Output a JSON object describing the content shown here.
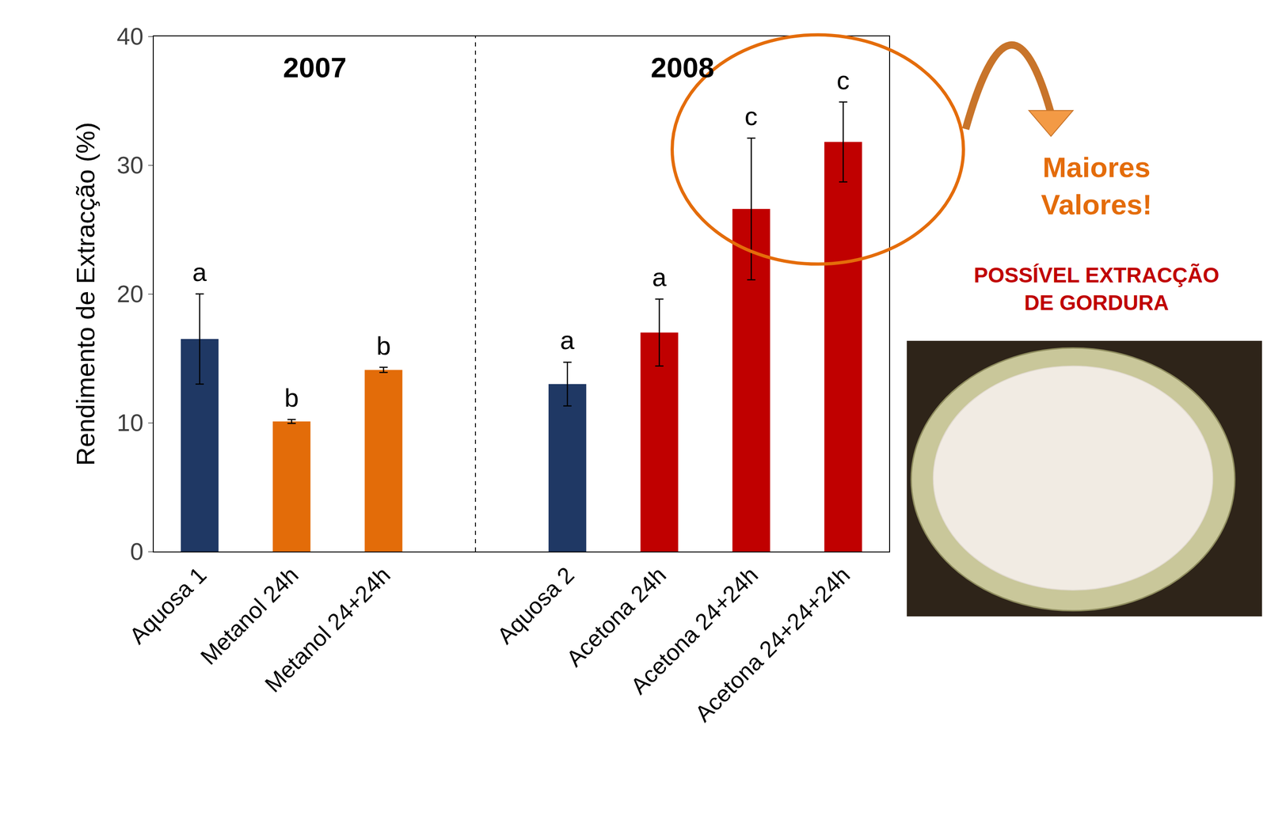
{
  "chart_data": {
    "type": "bar",
    "categories": [
      "Aquosa 1",
      "Metanol 24h",
      "Metanol 24+24h",
      null,
      "Aquosa 2",
      "Acetona 24h",
      "Acetona 24+24h",
      "Acetona 24+24+24h"
    ],
    "values": [
      16.5,
      10.1,
      14.1,
      null,
      13.0,
      17.0,
      26.6,
      31.8
    ],
    "errors": [
      3.5,
      0.15,
      0.2,
      null,
      1.7,
      2.6,
      5.5,
      3.1
    ],
    "letters": [
      "a",
      "b",
      "b",
      null,
      "a",
      "a",
      "c",
      "c"
    ],
    "colors": [
      "#1F3864",
      "#E36C09",
      "#E36C09",
      null,
      "#1F3864",
      "#C00000",
      "#C00000",
      "#C00000"
    ],
    "y_label": "Rendimento de Extracção (%)",
    "ylim": [
      0,
      40
    ],
    "yticks": [
      0,
      10,
      20,
      30,
      40
    ],
    "grid": false,
    "groups": [
      {
        "label": "2007",
        "categories": [
          "Aquosa 1",
          "Metanol 24h",
          "Metanol 24+24h"
        ]
      },
      {
        "label": "2008",
        "categories": [
          "Aquosa 2",
          "Acetona 24h",
          "Acetona 24+24h",
          "Acetona 24+24+24h"
        ]
      }
    ],
    "annotations": [
      {
        "text": "Maiores Valores!",
        "color": "#E46C0A"
      },
      {
        "text": "POSSÍVEL EXTRACÇÃO DE GORDURA",
        "color": "#C00000"
      }
    ]
  }
}
